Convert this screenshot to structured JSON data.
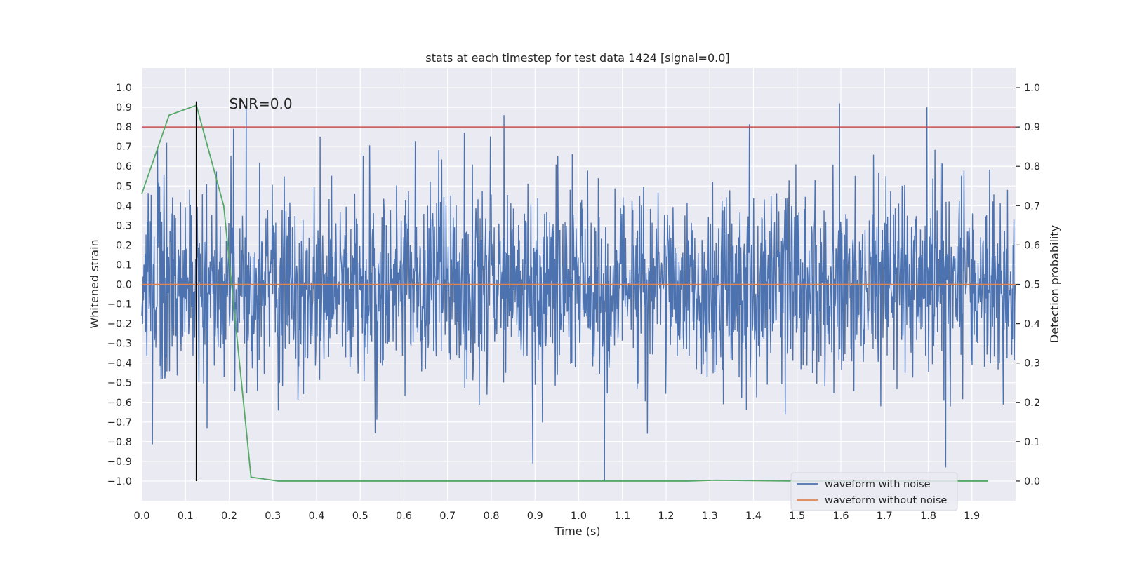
{
  "chart_data": {
    "type": "line",
    "title": "stats at each timestep for test data 1424 [signal=0.0]",
    "xlabel": "Time (s)",
    "ylabel": "Whitened strain",
    "y2label": "Detection probability",
    "xlim": [
      0.0,
      2.0
    ],
    "ylim": [
      -1.1,
      1.1
    ],
    "y2lim": [
      -0.05,
      1.05
    ],
    "xticks": [
      "0.0",
      "0.1",
      "0.2",
      "0.3",
      "0.4",
      "0.5",
      "0.6",
      "0.7",
      "0.8",
      "0.9",
      "1.0",
      "1.1",
      "1.2",
      "1.3",
      "1.4",
      "1.5",
      "1.6",
      "1.7",
      "1.8",
      "1.9"
    ],
    "xtick_values": [
      0.0,
      0.1,
      0.2,
      0.3,
      0.4,
      0.5,
      0.6,
      0.7,
      0.8,
      0.9,
      1.0,
      1.1,
      1.2,
      1.3,
      1.4,
      1.5,
      1.6,
      1.7,
      1.8,
      1.9
    ],
    "yticks": [
      "1.0",
      "0.9",
      "0.8",
      "0.7",
      "0.6",
      "0.5",
      "0.4",
      "0.3",
      "0.2",
      "0.1",
      "0.0",
      "−0.1",
      "−0.2",
      "−0.3",
      "−0.4",
      "−0.5",
      "−0.6",
      "−0.7",
      "−0.8",
      "−0.9",
      "−1.0"
    ],
    "ytick_values": [
      1.0,
      0.9,
      0.8,
      0.7,
      0.6,
      0.5,
      0.4,
      0.3,
      0.2,
      0.1,
      0.0,
      -0.1,
      -0.2,
      -0.3,
      -0.4,
      -0.5,
      -0.6,
      -0.7,
      -0.8,
      -0.9,
      -1.0
    ],
    "y2ticks": [
      "1.0",
      "0.9",
      "0.8",
      "0.7",
      "0.6",
      "0.5",
      "0.4",
      "0.3",
      "0.2",
      "0.1",
      "0.0"
    ],
    "y2tick_values": [
      1.0,
      0.9,
      0.8,
      0.7,
      0.6,
      0.5,
      0.4,
      0.3,
      0.2,
      0.1,
      0.0
    ],
    "annotation": "SNR=0.0",
    "annotation_at": {
      "x": 0.2,
      "y": 0.9
    },
    "marker_time": 0.125,
    "threshold": 0.9,
    "legend": {
      "location": "lower-right",
      "entries": [
        "waveform with noise",
        "waveform without noise"
      ]
    },
    "series": [
      {
        "name": "waveform with noise",
        "axis": "left",
        "color": "#4c72b0",
        "samples": 2048,
        "amplitude_range": [
          -1.0,
          0.93
        ]
      },
      {
        "name": "waveform without noise",
        "axis": "left",
        "color": "#dd8452",
        "x": [
          0.0,
          2.0
        ],
        "values": [
          0.0,
          0.0
        ]
      },
      {
        "name": "detection probability",
        "axis": "right",
        "color": "#55a868",
        "x": [
          0.0,
          0.0625,
          0.125,
          0.1875,
          0.25,
          0.3125,
          0.375,
          0.5,
          0.75,
          1.0,
          1.25,
          1.3125,
          1.5,
          1.75,
          1.9375
        ],
        "values": [
          0.73,
          0.93,
          0.955,
          0.7,
          0.01,
          0.0,
          0.0,
          0.0,
          0.0,
          0.0,
          0.0,
          0.002,
          0.0,
          0.0,
          0.0
        ]
      },
      {
        "name": "threshold",
        "axis": "right",
        "color": "#c44e52",
        "x": [
          0.0,
          2.0
        ],
        "values": [
          0.9,
          0.9
        ]
      }
    ]
  }
}
